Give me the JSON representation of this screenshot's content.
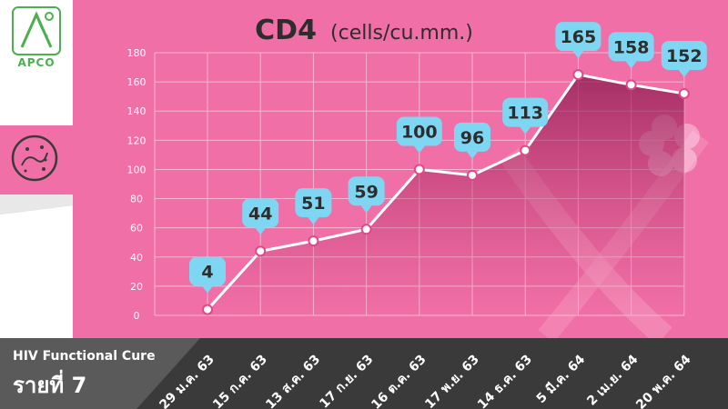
{
  "logo": {
    "text": "APCO",
    "icon": "apco-logo-icon"
  },
  "side_icon": "virus-cell-icon",
  "caption": {
    "line1": "HIV Functional Cure",
    "line2": "รายที่ 7"
  },
  "colors": {
    "background": "#f06fa6",
    "panel": "#ffffff",
    "bubble": "#7fd6f2",
    "dark": "#3a3a3a",
    "line": "#ffffff"
  },
  "chart_data": {
    "type": "line",
    "title": "CD4",
    "unit": "(cells/cu.mm.)",
    "categories": [
      "29 ม.ค. 63",
      "15 ก.ค. 63",
      "13 ส.ค. 63",
      "17 ก.ย. 63",
      "16 ต.ค. 63",
      "17 พ.ย. 63",
      "14 ธ.ค. 63",
      "5 มี.ค. 64",
      "2 เม.ย. 64",
      "20 พ.ค. 64"
    ],
    "values": [
      4,
      44,
      51,
      59,
      100,
      96,
      113,
      165,
      158,
      152
    ],
    "data_labels": [
      "4",
      "44",
      "51",
      "59",
      "100",
      "96",
      "113",
      "165",
      "158",
      "152"
    ],
    "yticks": [
      "0",
      "20",
      "40",
      "60",
      "80",
      "100",
      "120",
      "140",
      "160",
      "180"
    ],
    "ylim": [
      0,
      180
    ],
    "grid": true
  }
}
